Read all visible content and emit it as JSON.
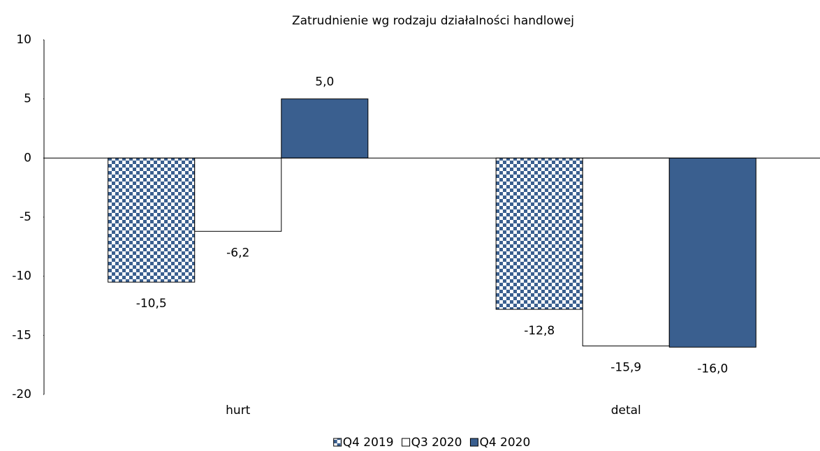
{
  "chart_data": {
    "type": "bar",
    "title": "Zatrudnienie wg rodzaju działalności handlowej",
    "categories": [
      "hurt",
      "detal"
    ],
    "series": [
      {
        "name": "Q4 2019",
        "color": "#3a5f8f",
        "pattern": "checker",
        "values": [
          -10.5,
          -12.8
        ],
        "value_labels": [
          "-10,5",
          "-12,8"
        ]
      },
      {
        "name": "Q3 2020",
        "color": "#ffffff",
        "values": [
          -6.2,
          -15.9
        ],
        "value_labels": [
          "-6,2",
          "-15,9"
        ]
      },
      {
        "name": "Q4 2020",
        "color": "#3a5f8f",
        "values": [
          5.0,
          -16.0
        ],
        "value_labels": [
          "5,0",
          "-16,0"
        ]
      }
    ],
    "ylim": [
      -20,
      10
    ],
    "yticks": [
      -20,
      -15,
      -10,
      -5,
      0,
      5,
      10
    ],
    "grid": false,
    "legend": "bottom"
  }
}
